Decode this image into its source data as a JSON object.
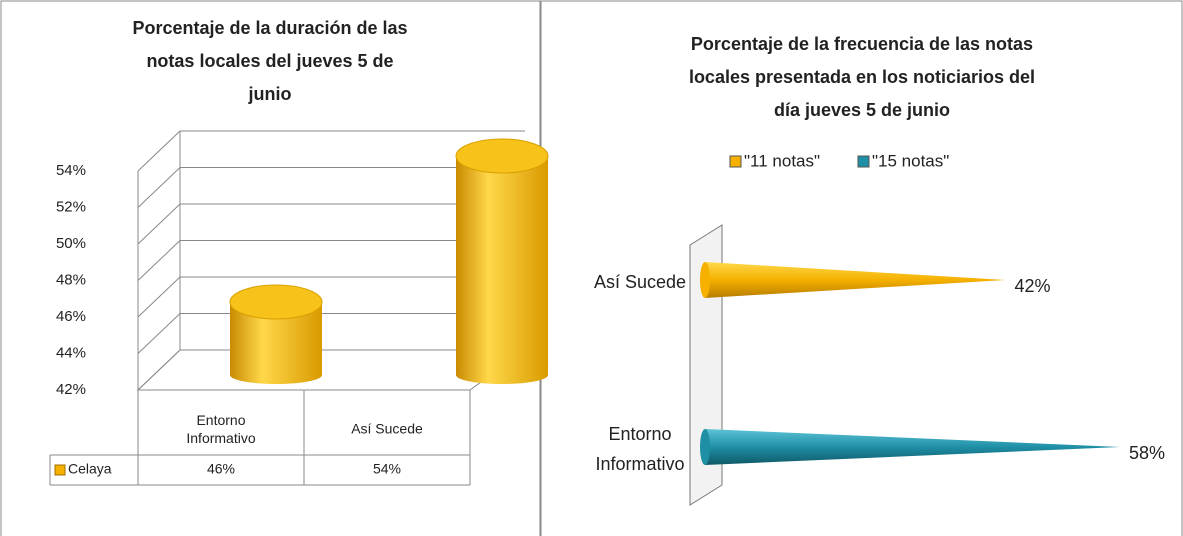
{
  "chart_data": [
    {
      "type": "cylinder-bar",
      "title": "Porcentaje de la duración de las notas locales del jueves 5 de junio",
      "categories": [
        "Entorno Informativo",
        "Así Sucede"
      ],
      "series": [
        {
          "name": "Celaya",
          "color": "#f5b000",
          "values": [
            46,
            54
          ],
          "value_labels": [
            "46%",
            "54%"
          ]
        }
      ],
      "ylim": [
        42,
        54
      ],
      "yticks": [
        {
          "value": 42,
          "label": "42%"
        },
        {
          "value": 44,
          "label": "44%"
        },
        {
          "value": 46,
          "label": "46%"
        },
        {
          "value": 48,
          "label": "48%"
        },
        {
          "value": 50,
          "label": "50%"
        },
        {
          "value": 52,
          "label": "52%"
        },
        {
          "value": 54,
          "label": "54%"
        }
      ],
      "grid": true,
      "data_table": true
    },
    {
      "type": "cone-barh",
      "title": "Porcentaje de la frecuencia de las notas locales presentada en los noticiarios del día jueves 5 de junio",
      "categories": [
        "Entorno Informativo",
        "Así Sucede"
      ],
      "series": [
        {
          "name": "\"11 notas\"",
          "color": "#f5b000",
          "values": [
            null,
            42
          ],
          "value_labels": [
            null,
            "42%"
          ]
        },
        {
          "name": "\"15 notas\"",
          "color": "#1f8fa6",
          "values": [
            58,
            null
          ],
          "value_labels": [
            "58%",
            null
          ]
        }
      ],
      "legend": "top"
    }
  ]
}
